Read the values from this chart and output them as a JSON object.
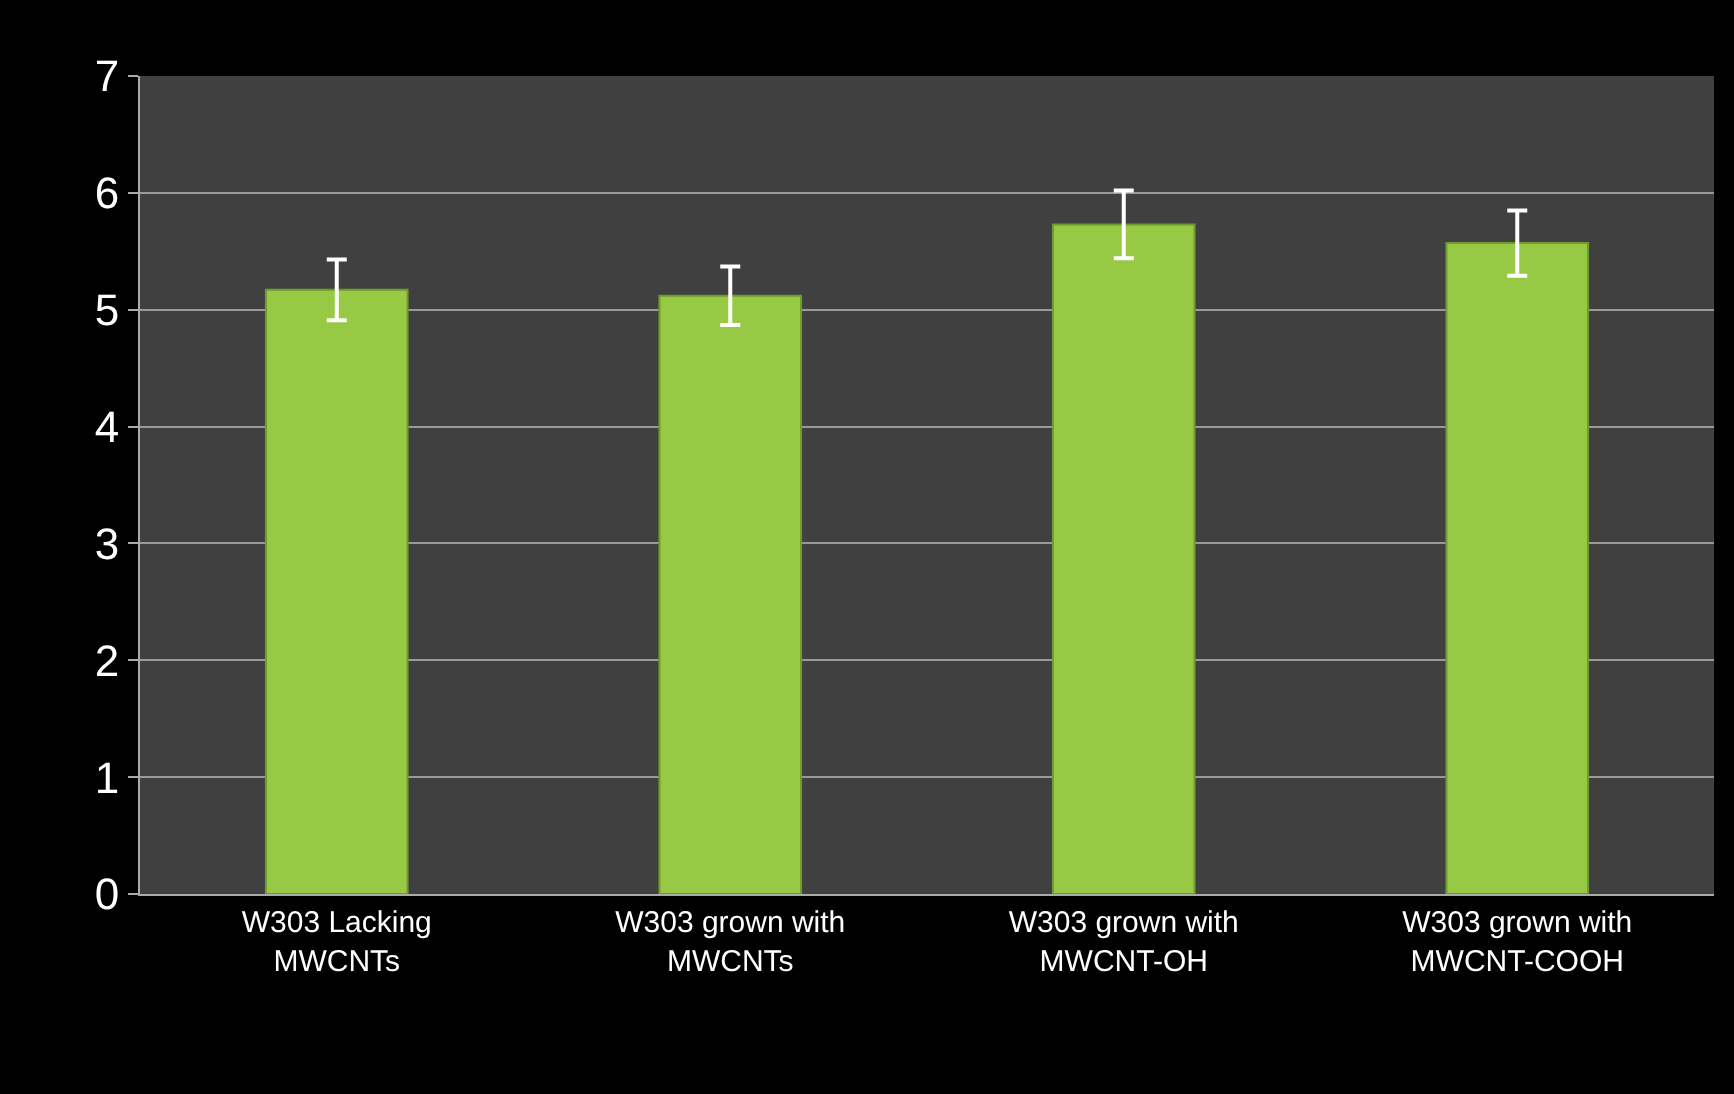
{
  "chart_data": {
    "type": "bar",
    "categories": [
      "W303 Lacking\nMWCNTs",
      "W303 grown with\nMWCNTs",
      "W303 grown with\nMWCNT-OH",
      "W303 grown with\nMWCNT-COOH"
    ],
    "series": [
      {
        "color": "#97c945",
        "values": [
          5.17,
          5.12,
          5.73,
          5.57
        ],
        "errors": [
          0.26,
          0.25,
          0.29,
          0.28
        ]
      }
    ],
    "ylim": [
      0,
      7
    ],
    "yticks": [
      0,
      1,
      2,
      3,
      4,
      5,
      6,
      7
    ],
    "grid": "y"
  }
}
